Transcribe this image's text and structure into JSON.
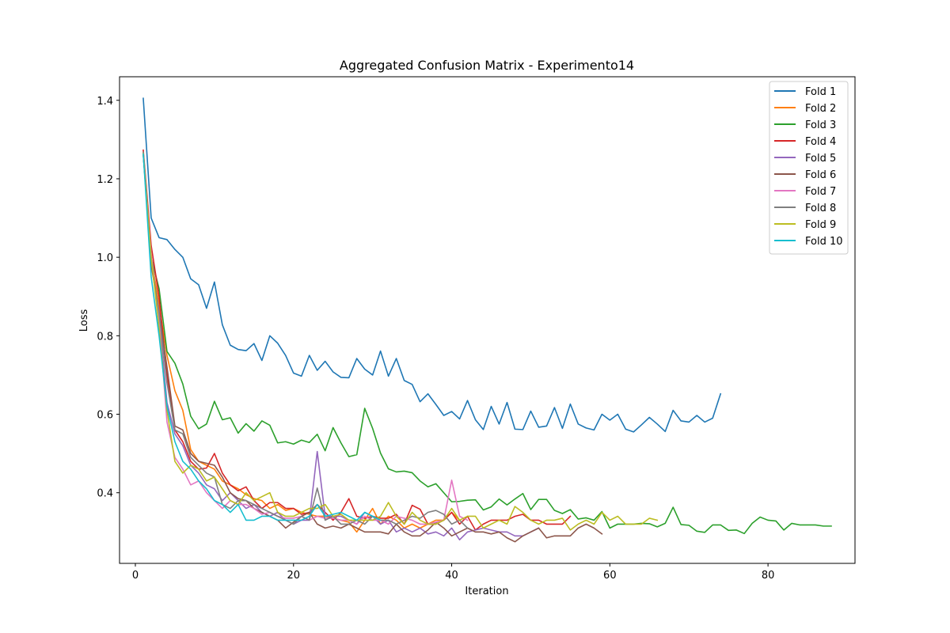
{
  "chart_data": {
    "type": "line",
    "title": "Aggregated Confusion Matrix - Experimento14",
    "xlabel": "Iteration",
    "ylabel": "Loss",
    "xlim": [
      -2,
      91
    ],
    "ylim": [
      0.22,
      1.46
    ],
    "xticks": [
      0,
      20,
      40,
      60,
      80
    ],
    "yticks": [
      0.4,
      0.6,
      0.8,
      1.0,
      1.2,
      1.4
    ],
    "xtick_labels": [
      "0",
      "20",
      "40",
      "60",
      "80"
    ],
    "ytick_labels": [
      "0.4",
      "0.6",
      "0.8",
      "1.0",
      "1.2",
      "1.4"
    ],
    "grid": false,
    "legend_position": "top-right",
    "series": [
      {
        "name": "Fold 1",
        "color": "#1f77b4",
        "x_start": 1,
        "values": [
          1.405,
          1.1,
          1.05,
          1.045,
          1.02,
          1.0,
          0.945,
          0.93,
          0.87,
          0.937,
          0.828,
          0.776,
          0.765,
          0.762,
          0.78,
          0.737,
          0.8,
          0.781,
          0.75,
          0.705,
          0.697,
          0.75,
          0.712,
          0.735,
          0.708,
          0.694,
          0.693,
          0.742,
          0.715,
          0.7,
          0.761,
          0.697,
          0.742,
          0.686,
          0.676,
          0.632,
          0.652,
          0.625,
          0.597,
          0.607,
          0.588,
          0.635,
          0.586,
          0.561,
          0.62,
          0.575,
          0.63,
          0.562,
          0.561,
          0.608,
          0.567,
          0.57,
          0.617,
          0.564,
          0.626,
          0.575,
          0.565,
          0.56,
          0.6,
          0.585,
          0.6,
          0.562,
          0.555,
          0.573,
          0.592,
          0.575,
          0.556,
          0.61,
          0.583,
          0.58,
          0.597,
          0.58,
          0.59,
          0.652
        ]
      },
      {
        "name": "Fold 2",
        "color": "#ff7f0e",
        "x_start": 1,
        "values": [
          1.265,
          1.0,
          0.88,
          0.75,
          0.66,
          0.61,
          0.51,
          0.48,
          0.47,
          0.46,
          0.43,
          0.42,
          0.41,
          0.395,
          0.385,
          0.38,
          0.36,
          0.37,
          0.355,
          0.36,
          0.35,
          0.345,
          0.34,
          0.34,
          0.335,
          0.33,
          0.325,
          0.3,
          0.33,
          0.36,
          0.32,
          0.34,
          0.33,
          0.31,
          0.32,
          0.31,
          0.32,
          0.33,
          0.33,
          0.35,
          0.33
        ]
      },
      {
        "name": "Fold 3",
        "color": "#2ca02c",
        "x_start": 1,
        "values": [
          1.26,
          1.0,
          0.92,
          0.76,
          0.73,
          0.677,
          0.595,
          0.563,
          0.575,
          0.633,
          0.586,
          0.591,
          0.552,
          0.576,
          0.557,
          0.583,
          0.572,
          0.527,
          0.53,
          0.524,
          0.534,
          0.528,
          0.549,
          0.507,
          0.566,
          0.527,
          0.492,
          0.497,
          0.615,
          0.564,
          0.501,
          0.461,
          0.453,
          0.455,
          0.451,
          0.43,
          0.415,
          0.423,
          0.4,
          0.377,
          0.378,
          0.381,
          0.382,
          0.356,
          0.364,
          0.384,
          0.369,
          0.384,
          0.398,
          0.357,
          0.383,
          0.383,
          0.355,
          0.347,
          0.357,
          0.333,
          0.336,
          0.33,
          0.352,
          0.31,
          0.32,
          0.32,
          0.32,
          0.322,
          0.321,
          0.313,
          0.322,
          0.363,
          0.319,
          0.317,
          0.302,
          0.299,
          0.318,
          0.318,
          0.304,
          0.305,
          0.296,
          0.322,
          0.338,
          0.33,
          0.328,
          0.305,
          0.322,
          0.318,
          0.318,
          0.318,
          0.315,
          0.315
        ]
      },
      {
        "name": "Fold 4",
        "color": "#d62728",
        "x_start": 1,
        "values": [
          1.273,
          1.03,
          0.9,
          0.7,
          0.56,
          0.53,
          0.48,
          0.46,
          0.463,
          0.5,
          0.45,
          0.42,
          0.405,
          0.415,
          0.38,
          0.36,
          0.375,
          0.375,
          0.36,
          0.36,
          0.345,
          0.35,
          0.37,
          0.35,
          0.33,
          0.35,
          0.385,
          0.34,
          0.335,
          0.34,
          0.335,
          0.335,
          0.345,
          0.32,
          0.368,
          0.358,
          0.32,
          0.32,
          0.33,
          0.35,
          0.32,
          0.34,
          0.305,
          0.32,
          0.33,
          0.33,
          0.33,
          0.34,
          0.345,
          0.33,
          0.33,
          0.32,
          0.32,
          0.32,
          0.34
        ]
      },
      {
        "name": "Fold 5",
        "color": "#9467bd",
        "x_start": 1,
        "values": [
          1.263,
          0.99,
          0.85,
          0.63,
          0.55,
          0.52,
          0.47,
          0.45,
          0.42,
          0.41,
          0.38,
          0.4,
          0.38,
          0.36,
          0.37,
          0.35,
          0.34,
          0.35,
          0.33,
          0.32,
          0.33,
          0.33,
          0.505,
          0.34,
          0.34,
          0.34,
          0.33,
          0.32,
          0.35,
          0.34,
          0.32,
          0.33,
          0.3,
          0.31,
          0.3,
          0.31,
          0.295,
          0.3,
          0.29,
          0.31,
          0.28,
          0.3,
          0.305,
          0.31,
          0.305,
          0.3,
          0.3,
          0.29,
          0.29,
          0.3,
          0.31
        ]
      },
      {
        "name": "Fold 6",
        "color": "#8c564b",
        "x_start": 1,
        "values": [
          1.265,
          0.98,
          0.86,
          0.72,
          0.57,
          0.56,
          0.5,
          0.48,
          0.475,
          0.47,
          0.44,
          0.4,
          0.385,
          0.38,
          0.36,
          0.35,
          0.34,
          0.33,
          0.31,
          0.325,
          0.34,
          0.35,
          0.32,
          0.31,
          0.315,
          0.31,
          0.32,
          0.31,
          0.3,
          0.3,
          0.3,
          0.295,
          0.32,
          0.3,
          0.29,
          0.29,
          0.305,
          0.325,
          0.31,
          0.29,
          0.3,
          0.31,
          0.3,
          0.3,
          0.295,
          0.3,
          0.285,
          0.275,
          0.29,
          0.3,
          0.31,
          0.285,
          0.29,
          0.29,
          0.29,
          0.31,
          0.32,
          0.31,
          0.295
        ]
      },
      {
        "name": "Fold 7",
        "color": "#e377c2",
        "x_start": 1,
        "values": [
          1.266,
          1.01,
          0.84,
          0.58,
          0.49,
          0.46,
          0.42,
          0.43,
          0.4,
          0.38,
          0.36,
          0.38,
          0.37,
          0.37,
          0.36,
          0.345,
          0.35,
          0.34,
          0.335,
          0.335,
          0.34,
          0.33,
          0.34,
          0.335,
          0.335,
          0.33,
          0.33,
          0.32,
          0.34,
          0.33,
          0.33,
          0.32,
          0.34,
          0.335,
          0.33,
          0.32,
          0.32,
          0.325,
          0.33,
          0.432,
          0.34,
          0.33
        ]
      },
      {
        "name": "Fold 8",
        "color": "#7f7f7f",
        "x_start": 1,
        "values": [
          1.268,
          0.99,
          0.86,
          0.68,
          0.56,
          0.55,
          0.49,
          0.47,
          0.45,
          0.44,
          0.37,
          0.36,
          0.38,
          0.38,
          0.37,
          0.36,
          0.35,
          0.34,
          0.33,
          0.32,
          0.34,
          0.33,
          0.412,
          0.33,
          0.34,
          0.32,
          0.32,
          0.33,
          0.32,
          0.34,
          0.33,
          0.33,
          0.32,
          0.33,
          0.34,
          0.335,
          0.35,
          0.355,
          0.345,
          0.32,
          0.33,
          0.31
        ]
      },
      {
        "name": "Fold 9",
        "color": "#bcbd22",
        "x_start": 1,
        "values": [
          1.264,
          1.0,
          0.82,
          0.61,
          0.48,
          0.45,
          0.47,
          0.46,
          0.43,
          0.44,
          0.41,
          0.38,
          0.37,
          0.4,
          0.38,
          0.39,
          0.4,
          0.35,
          0.34,
          0.34,
          0.35,
          0.36,
          0.36,
          0.37,
          0.34,
          0.345,
          0.33,
          0.33,
          0.33,
          0.33,
          0.34,
          0.375,
          0.34,
          0.32,
          0.35,
          0.33,
          0.32,
          0.32,
          0.33,
          0.36,
          0.33,
          0.34,
          0.34,
          0.31,
          0.32,
          0.33,
          0.32,
          0.365,
          0.35,
          0.33,
          0.32,
          0.33,
          0.33,
          0.335,
          0.305,
          0.32,
          0.33,
          0.32,
          0.35,
          0.33,
          0.34,
          0.32,
          0.32,
          0.32,
          0.335,
          0.33
        ]
      },
      {
        "name": "Fold 10",
        "color": "#17becf",
        "x_start": 1,
        "values": [
          1.263,
          0.95,
          0.8,
          0.62,
          0.53,
          0.48,
          0.46,
          0.43,
          0.41,
          0.38,
          0.37,
          0.35,
          0.37,
          0.33,
          0.33,
          0.34,
          0.34,
          0.33,
          0.33,
          0.33,
          0.33,
          0.34,
          0.37,
          0.34,
          0.345,
          0.35,
          0.34,
          0.33,
          0.35,
          0.34,
          0.33
        ]
      }
    ]
  }
}
